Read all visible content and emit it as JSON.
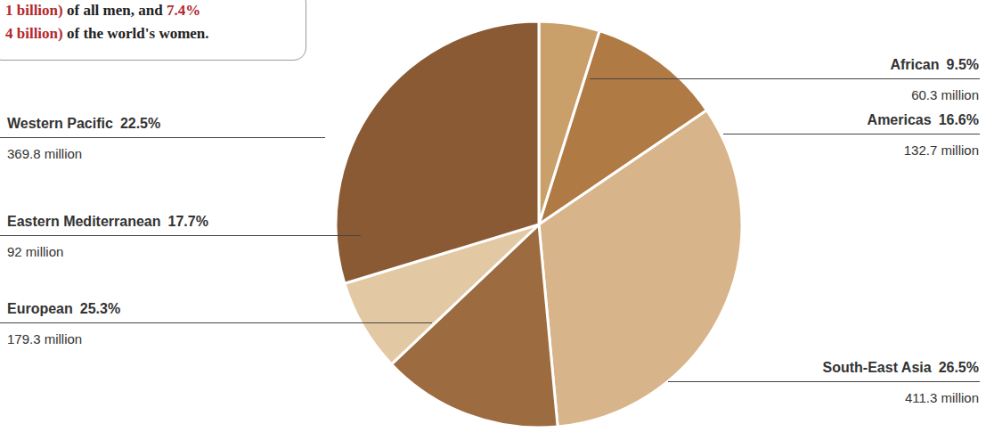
{
  "chart_data": {
    "type": "pie",
    "note_lines": [
      [
        "1 billion)",
        " of all men, and ",
        "7.4%"
      ],
      [
        "4 billion)",
        " of the world's women."
      ]
    ],
    "categories": [
      "African",
      "Americas",
      "South-East Asia",
      "European",
      "Eastern Mediterranean",
      "Western Pacific"
    ],
    "rate_labels": [
      "9.5%",
      "16.6%",
      "26.5%",
      "25.3%",
      "17.7%",
      "22.5%"
    ],
    "values": [
      60.3,
      132.7,
      411.3,
      179.3,
      92,
      369.8
    ],
    "value_labels": [
      "60.3 million",
      "132.7 million",
      "411.3 million",
      "179.3 million",
      "92 million",
      "369.8 million"
    ],
    "colors": [
      "#c9a06a",
      "#b07a45",
      "#d8b48a",
      "#9c6b3f",
      "#e3c9a3",
      "#8a5a34"
    ],
    "data_labels": true
  }
}
